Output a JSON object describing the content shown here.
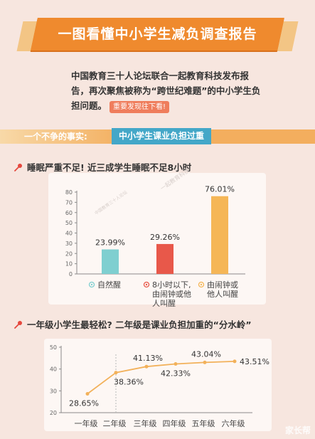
{
  "header": {
    "title": "一图看懂中小学生减负调查报告"
  },
  "intro": {
    "text": "中国教育三十人论坛联合一起教育科技发布报告，再次聚焦被称为“跨世纪难题”的中小学生负担问题。",
    "badge": "重要发现往下看!"
  },
  "fact": {
    "label": "一个不争的事实:",
    "highlight": "中小学生课业负担过重"
  },
  "sections": {
    "sleep_title": "睡眠严重不足! 近三成学生睡眠不足8小时",
    "grade_title": "一年级小学生最轻松? 二年级是课业负担加重的“分水岭”"
  },
  "chart_logos": {
    "logo_text": "中国教育三十人论坛",
    "brand_text": "一起教育科技"
  },
  "chart_data": [
    {
      "type": "bar",
      "categories": [
        "自然醒",
        "8小时以下,由闹钟或他人叫醒",
        "由闹钟或他人叫醒"
      ],
      "category_lines": [
        [
          "自然醒"
        ],
        [
          "8小时以下,",
          "由闹钟或他",
          "人叫醒"
        ],
        [
          "由闹钟或",
          "他人叫醒"
        ]
      ],
      "values": [
        23.99,
        29.26,
        76.01
      ],
      "data_labels": [
        "23.99%",
        "29.26%",
        "76.01%"
      ],
      "colors": [
        "#7fcfd0",
        "#e8584a",
        "#f5b657"
      ],
      "ylim": [
        0,
        80
      ],
      "yticks": [
        0,
        10,
        20,
        30,
        40,
        50,
        60,
        70,
        80
      ],
      "grid": false,
      "title": "",
      "xlabel": "",
      "ylabel": ""
    },
    {
      "type": "line",
      "categories": [
        "一年级",
        "二年级",
        "三年级",
        "四年级",
        "五年级",
        "六年级"
      ],
      "values": [
        28.65,
        38.36,
        41.13,
        42.33,
        43.04,
        43.51
      ],
      "data_labels": [
        "28.65%",
        "38.36%",
        "41.13%",
        "42.33%",
        "43.04%",
        "43.51%"
      ],
      "color": "#f2b15a",
      "ylim": [
        20,
        50
      ],
      "yticks": [
        20,
        30,
        40,
        50
      ],
      "grid": false,
      "title": "",
      "xlabel": "",
      "ylabel": ""
    }
  ],
  "watermark": {
    "text": "家长帮"
  },
  "colors": {
    "banner": "#ef8a2e",
    "fact_highlight": "#43a7c8",
    "background": "#f7e6df"
  }
}
